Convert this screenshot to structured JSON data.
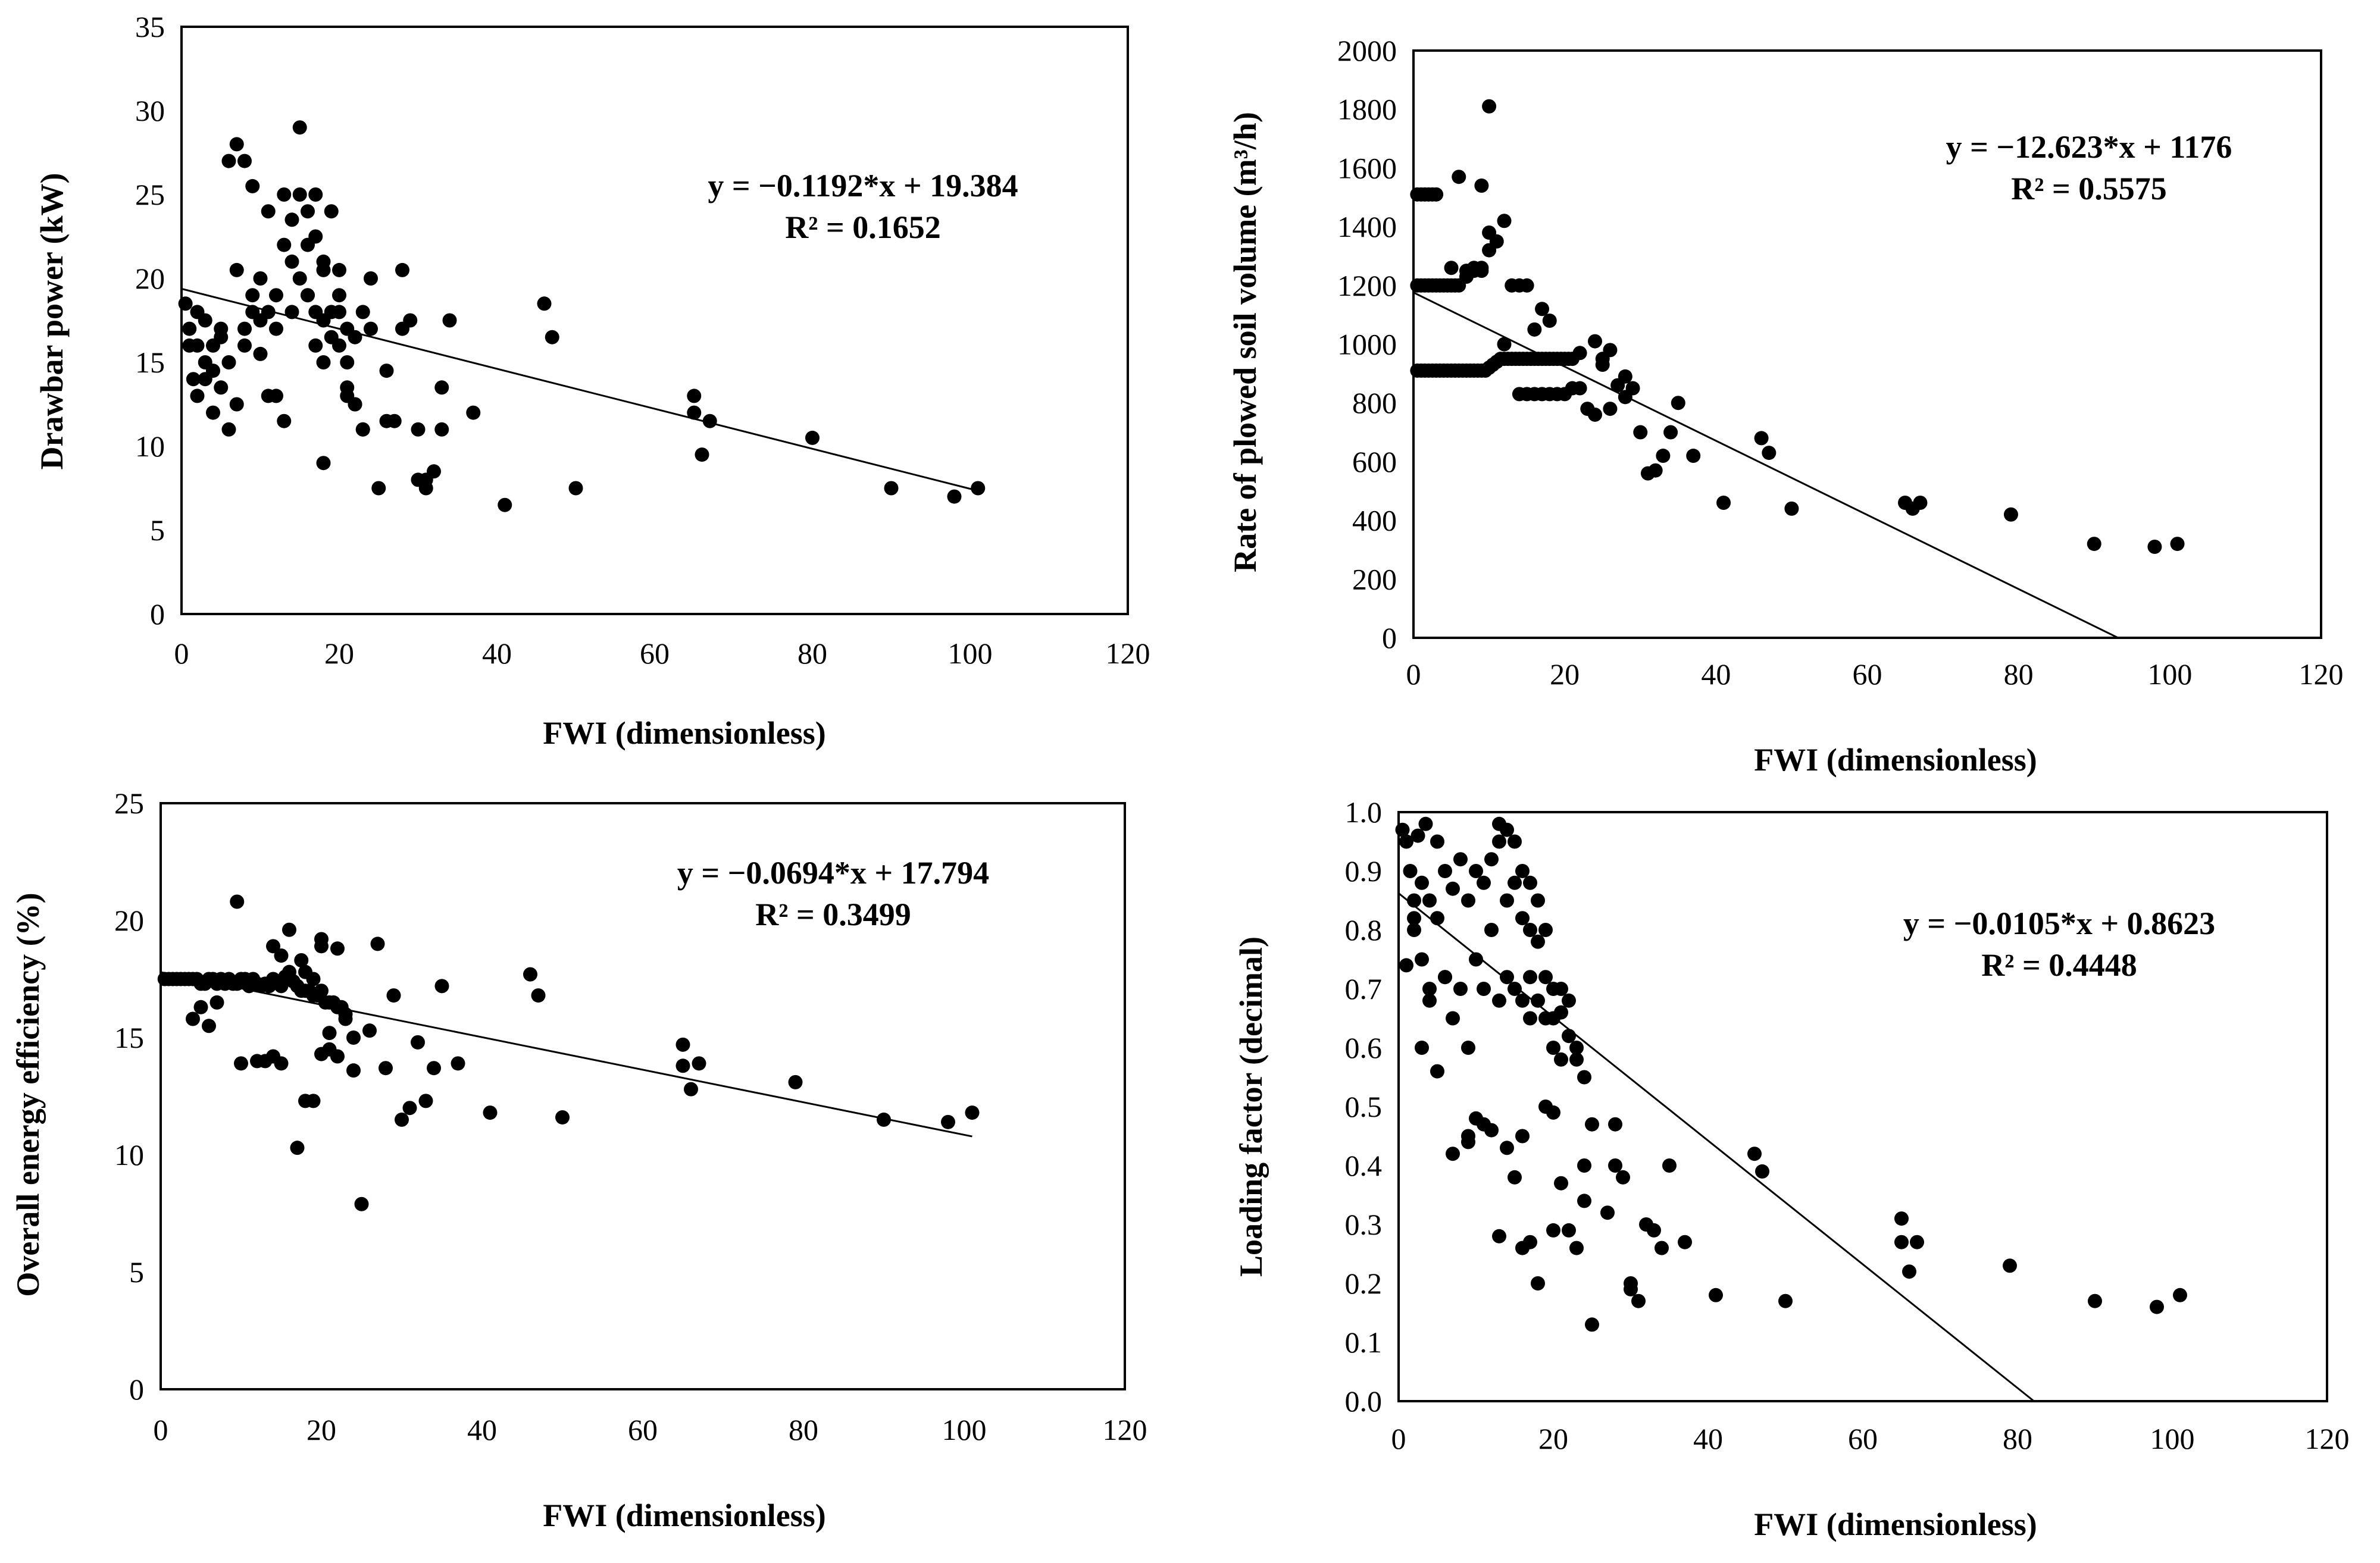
{
  "chart_data": [
    {
      "type": "scatter",
      "xlabel": "FWI (dimensionless)",
      "ylabel": "Drawbar  power  (kW)",
      "xlim": [
        0,
        120
      ],
      "ylim": [
        0,
        35
      ],
      "xticks": [
        0,
        20,
        40,
        60,
        80,
        100,
        120
      ],
      "yticks": [
        0,
        5,
        10,
        15,
        20,
        25,
        30,
        35
      ],
      "equation": "y = −0.1192*x + 19.384",
      "r2": "R² = 0.1652",
      "trendline": {
        "slope": -0.1192,
        "intercept": 19.384,
        "x_range": [
          0,
          101
        ]
      },
      "x": [
        0.5,
        1,
        1.5,
        2,
        2,
        3,
        3,
        4,
        4,
        5,
        5,
        6,
        6,
        7,
        7,
        8,
        8,
        9,
        9,
        10,
        10,
        10,
        11,
        11,
        12,
        12,
        13,
        13,
        14,
        14,
        14,
        15,
        15,
        15,
        16,
        16,
        16,
        17,
        17,
        17,
        17,
        18,
        18,
        18,
        18,
        19,
        19,
        19,
        20,
        20,
        20,
        21,
        21,
        21,
        22,
        22,
        23,
        23,
        24,
        25,
        26,
        27,
        28,
        29,
        30,
        31,
        32,
        33,
        34,
        37,
        41,
        46,
        47,
        50,
        65,
        65,
        66,
        67,
        80,
        90,
        98,
        101,
        1,
        2,
        3,
        4,
        5,
        6,
        7,
        8,
        9,
        11,
        12,
        13,
        16,
        18,
        20,
        21,
        22,
        23,
        24,
        26,
        28,
        30,
        31,
        33
      ],
      "y": [
        18.5,
        16,
        14,
        18,
        13,
        15,
        17.5,
        14.5,
        16,
        16.5,
        13.5,
        27,
        15,
        28,
        20.5,
        17,
        27,
        19,
        25.5,
        17.5,
        15.5,
        20,
        18,
        24,
        19,
        17,
        25,
        22,
        23.5,
        18,
        21,
        29,
        25,
        20,
        24,
        19,
        22,
        22.5,
        18,
        25,
        16,
        21,
        17.5,
        20.5,
        15,
        18,
        16.5,
        24,
        16,
        18,
        20.5,
        13,
        17,
        15,
        16.5,
        12.5,
        18,
        11,
        20,
        7.5,
        14.5,
        11.5,
        20.5,
        17.5,
        11,
        7.5,
        8.5,
        13.5,
        17.5,
        12,
        6.5,
        18.5,
        16.5,
        7.5,
        13,
        12,
        9.5,
        11.5,
        10.5,
        7.5,
        7,
        7.5,
        17,
        16,
        14,
        12,
        17,
        11,
        12.5,
        16,
        18,
        13,
        13,
        11.5,
        19,
        9,
        19,
        13.5,
        12.5,
        11,
        17,
        11.5,
        17,
        8,
        8,
        11
      ]
    },
    {
      "type": "scatter",
      "xlabel": "FWI (dimensionless)",
      "ylabel": "Rate of plowed  soil volume  (m³/h)",
      "xlim": [
        0,
        120
      ],
      "ylim": [
        0,
        2000
      ],
      "xticks": [
        0,
        20,
        40,
        60,
        80,
        100,
        120
      ],
      "yticks": [
        0,
        200,
        400,
        600,
        800,
        1000,
        1200,
        1400,
        1600,
        1800,
        2000
      ],
      "equation": "y = −12.623*x + 1176",
      "r2": "R² = 0.5575",
      "trendline": {
        "slope": -12.623,
        "intercept": 1176,
        "x_range": [
          0,
          93.2
        ]
      },
      "x": [
        0.5,
        1,
        1.5,
        2,
        2.5,
        3,
        0.5,
        1,
        1.5,
        2,
        2.5,
        3,
        3.5,
        4,
        4.5,
        5,
        5.5,
        6,
        6.5,
        7,
        7.5,
        8,
        8.5,
        9,
        9.5,
        10,
        10.5,
        11,
        11.5,
        12,
        12.5,
        13,
        13.5,
        14,
        14.5,
        15,
        15.5,
        16,
        16.5,
        17,
        17.5,
        18,
        18.5,
        19,
        19.5,
        20,
        20.5,
        21,
        0.5,
        1,
        1.5,
        2,
        2.5,
        3,
        3.5,
        4,
        4.5,
        5,
        5.5,
        6,
        7,
        8,
        9,
        10,
        11,
        12,
        13,
        14,
        15,
        16,
        17,
        18,
        19,
        20,
        21,
        22,
        23,
        24,
        25,
        26,
        27,
        28,
        29,
        30,
        31,
        32,
        33,
        34,
        35,
        37,
        41,
        46,
        47,
        50,
        65,
        66,
        67,
        79,
        90,
        98,
        101,
        10,
        9,
        6,
        10,
        12,
        9,
        5,
        7,
        8,
        14,
        15,
        16,
        17,
        18,
        22,
        24,
        25,
        28,
        26
      ],
      "y": [
        1510,
        1510,
        1510,
        1510,
        1510,
        1510,
        910,
        910,
        910,
        910,
        910,
        910,
        910,
        910,
        910,
        910,
        910,
        910,
        910,
        910,
        910,
        910,
        910,
        910,
        910,
        920,
        930,
        940,
        950,
        950,
        950,
        950,
        950,
        950,
        950,
        950,
        950,
        950,
        950,
        950,
        950,
        950,
        950,
        950,
        950,
        950,
        950,
        950,
        1200,
        1200,
        1200,
        1200,
        1200,
        1200,
        1200,
        1200,
        1200,
        1200,
        1200,
        1200,
        1250,
        1250,
        1260,
        1320,
        1350,
        1420,
        1200,
        1200,
        1200,
        1050,
        1120,
        1080,
        830,
        830,
        850,
        850,
        780,
        760,
        950,
        780,
        860,
        820,
        850,
        700,
        560,
        570,
        620,
        700,
        800,
        620,
        460,
        680,
        630,
        440,
        460,
        440,
        460,
        420,
        320,
        310,
        320,
        1810,
        1540,
        1570,
        1380,
        1000,
        1250,
        1260,
        1230,
        1260,
        830,
        830,
        830,
        830,
        830,
        970,
        1010,
        930,
        890,
        980
      ]
    },
    {
      "type": "scatter",
      "xlabel": "FWI (dimensionless)",
      "ylabel": "Overall energy efficiency (%)",
      "xlim": [
        0,
        120
      ],
      "ylim": [
        0,
        25
      ],
      "xticks": [
        0,
        20,
        40,
        60,
        80,
        100,
        120
      ],
      "yticks": [
        0,
        5,
        10,
        15,
        20,
        25
      ],
      "equation": "y = −0.0694*x + 17.794",
      "r2": "R² = 0.3499",
      "trendline": {
        "slope": -0.0694,
        "intercept": 17.794,
        "x_range": [
          0,
          101
        ]
      },
      "x": [
        0.5,
        1,
        1.5,
        2,
        2.5,
        3,
        3.5,
        4,
        4.5,
        5,
        5.5,
        6,
        6.5,
        7,
        7.5,
        8,
        8.5,
        9,
        9.5,
        10,
        10.5,
        11,
        11.5,
        12,
        12.5,
        13,
        13.5,
        14,
        14.5,
        15,
        15.5,
        16,
        16.5,
        17,
        17.5,
        18,
        18.5,
        19,
        19.5,
        20,
        20.5,
        21,
        21.5,
        22,
        22.5,
        23,
        4,
        5,
        6,
        7,
        9.5,
        10,
        12,
        13,
        14,
        15,
        16,
        17,
        18,
        19,
        20,
        20,
        21,
        22,
        23,
        24,
        25,
        26,
        27,
        28,
        29,
        30,
        31,
        32,
        33,
        34,
        35,
        37,
        41,
        46,
        47,
        50,
        65,
        65,
        66,
        67,
        79,
        90,
        98,
        101,
        15,
        17.5,
        18,
        19,
        20,
        21,
        22,
        14,
        16,
        24
      ],
      "y": [
        17.5,
        17.5,
        17.5,
        17.5,
        17.5,
        17.5,
        17.5,
        17.5,
        17.5,
        17.3,
        17.3,
        17.5,
        17.5,
        17.3,
        17.5,
        17.3,
        17.5,
        17.3,
        17.3,
        17.5,
        17.5,
        17.2,
        17.5,
        17.3,
        17.2,
        17.3,
        17.2,
        17.5,
        17.4,
        17.2,
        17.6,
        17.6,
        17.4,
        17.2,
        17,
        17,
        17,
        16.8,
        16.8,
        17,
        16.5,
        16.5,
        16.5,
        16.3,
        16.3,
        16,
        15.8,
        16.3,
        15.5,
        16.5,
        20.8,
        13.9,
        14,
        14,
        14.2,
        13.9,
        19.6,
        10.3,
        12.3,
        12.3,
        18.9,
        14.3,
        14.5,
        18.8,
        15.8,
        15,
        7.9,
        15.3,
        19,
        13.7,
        16.8,
        11.5,
        12,
        14.8,
        12.3,
        13.7,
        17.2,
        13.9,
        11.8,
        17.7,
        16.8,
        11.6,
        14.7,
        13.8,
        12.8,
        13.9,
        13.1,
        11.5,
        11.4,
        11.8,
        18.5,
        18.3,
        17.8,
        17.5,
        19.2,
        15.2,
        14.2,
        18.9,
        17.8,
        13.6
      ]
    },
    {
      "type": "scatter",
      "xlabel": "FWI (dimensionless)",
      "ylabel": "Loading  factor (decimal)",
      "xlim": [
        0,
        120
      ],
      "ylim": [
        0,
        1
      ],
      "xticks": [
        0,
        20,
        40,
        60,
        80,
        100,
        120
      ],
      "yticks": [
        "0.0",
        "0.1",
        "0.2",
        "0.3",
        "0.4",
        "0.5",
        "0.6",
        "0.7",
        "0.8",
        "0.9",
        "1.0"
      ],
      "equation": "y = −0.0105*x + 0.8623",
      "r2": "R² = 0.4448",
      "trendline": {
        "slope": -0.0105,
        "intercept": 0.8623,
        "x_range": [
          0,
          82.1
        ]
      },
      "x": [
        0.5,
        1,
        1.5,
        2,
        2,
        2.5,
        3,
        3,
        3.5,
        4,
        4,
        5,
        5,
        6,
        6,
        7,
        7,
        8,
        8,
        9,
        9,
        10,
        10,
        11,
        11,
        12,
        12,
        13,
        13,
        14,
        14,
        14,
        15,
        15,
        15,
        16,
        16,
        16,
        17,
        17,
        17,
        17,
        18,
        18,
        18,
        19,
        19,
        19,
        20,
        20,
        20,
        21,
        21,
        21,
        22,
        22,
        23,
        23,
        24,
        1,
        2,
        3,
        4,
        5,
        6,
        7,
        9,
        10,
        11,
        12,
        13,
        14,
        15,
        16,
        17,
        18,
        19,
        20,
        21,
        22,
        23,
        24,
        25,
        27,
        28,
        29,
        30,
        31,
        32,
        33,
        34,
        35,
        37,
        41,
        46,
        47,
        50,
        65,
        65,
        66,
        67,
        79,
        90,
        98,
        101,
        24,
        25,
        28,
        30,
        20,
        13,
        9,
        16
      ],
      "y": [
        0.97,
        0.95,
        0.9,
        0.85,
        0.8,
        0.96,
        0.88,
        0.75,
        0.98,
        0.85,
        0.7,
        0.95,
        0.82,
        0.9,
        0.72,
        0.87,
        0.65,
        0.92,
        0.7,
        0.85,
        0.6,
        0.9,
        0.75,
        0.88,
        0.7,
        0.92,
        0.8,
        0.98,
        0.68,
        0.97,
        0.85,
        0.72,
        0.95,
        0.88,
        0.7,
        0.9,
        0.82,
        0.68,
        0.88,
        0.8,
        0.72,
        0.65,
        0.85,
        0.78,
        0.68,
        0.8,
        0.72,
        0.65,
        0.7,
        0.65,
        0.6,
        0.7,
        0.66,
        0.58,
        0.68,
        0.62,
        0.6,
        0.58,
        0.55,
        0.74,
        0.82,
        0.6,
        0.68,
        0.56,
        0.72,
        0.42,
        0.45,
        0.48,
        0.47,
        0.46,
        0.28,
        0.43,
        0.38,
        0.45,
        0.27,
        0.2,
        0.5,
        0.29,
        0.37,
        0.29,
        0.26,
        0.34,
        0.47,
        0.32,
        0.4,
        0.38,
        0.2,
        0.17,
        0.3,
        0.29,
        0.26,
        0.4,
        0.27,
        0.18,
        0.42,
        0.39,
        0.17,
        0.31,
        0.27,
        0.22,
        0.27,
        0.23,
        0.17,
        0.16,
        0.18,
        0.4,
        0.13,
        0.47,
        0.19,
        0.49,
        0.95,
        0.44,
        0.26
      ]
    }
  ]
}
